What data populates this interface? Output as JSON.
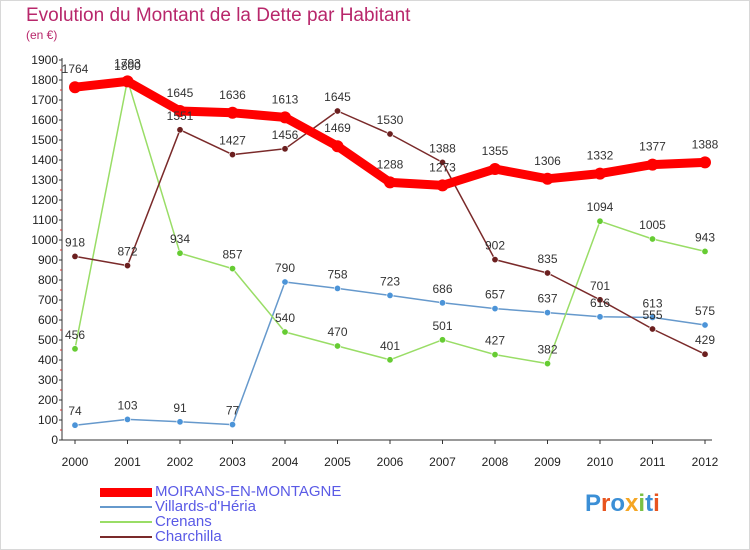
{
  "header": {
    "title": "Evolution du Montant de la Dette par Habitant",
    "subtitle": "(en €)"
  },
  "colors": {
    "title": "#b8276b",
    "axis": "#333333",
    "grid": "#d0d0d0",
    "legend_text": "#5a5ae6"
  },
  "chart_data": {
    "type": "line",
    "x": [
      "2000",
      "2001",
      "2002",
      "2003",
      "2004",
      "2005",
      "2006",
      "2007",
      "2008",
      "2009",
      "2010",
      "2011",
      "2012"
    ],
    "ylim": [
      0,
      1900
    ],
    "yticks": [
      0,
      100,
      200,
      300,
      400,
      500,
      600,
      700,
      800,
      900,
      1000,
      1100,
      1200,
      1300,
      1400,
      1500,
      1600,
      1700,
      1800,
      1900
    ],
    "grid": false,
    "legend_position": "bottom-left",
    "series": [
      {
        "name": "MOIRANS-EN-MONTAGNE",
        "color": "#ff0000",
        "marker_color": "#ff0000",
        "emphasis": true,
        "values": [
          1764,
          1793,
          1645,
          1636,
          1613,
          1469,
          1288,
          1273,
          1355,
          1306,
          1332,
          1377,
          1388
        ]
      },
      {
        "name": "Villards-d'Héria",
        "color": "#6699cc",
        "marker_color": "#4c94d8",
        "emphasis": false,
        "values": [
          74,
          103,
          91,
          77,
          790,
          758,
          723,
          686,
          657,
          637,
          616,
          613,
          575
        ]
      },
      {
        "name": "Crenans",
        "color": "#99dd66",
        "marker_color": "#66cc33",
        "emphasis": false,
        "values": [
          456,
          1800,
          934,
          857,
          540,
          470,
          401,
          501,
          427,
          382,
          1094,
          1005,
          943
        ]
      },
      {
        "name": "Charchilla",
        "color": "#7a2a2a",
        "marker_color": "#6b1f1f",
        "emphasis": false,
        "values": [
          918,
          872,
          1551,
          1427,
          1456,
          1645,
          1530,
          1388,
          902,
          835,
          701,
          555,
          429
        ]
      }
    ]
  },
  "logo": {
    "letters": [
      "P",
      "r",
      "o",
      "x",
      "i",
      "t",
      "i"
    ],
    "colors": [
      "#3b8fd6",
      "#e8541e",
      "#3b8fd6",
      "#f5a623",
      "#7bc043",
      "#3b8fd6",
      "#e8541e"
    ]
  }
}
